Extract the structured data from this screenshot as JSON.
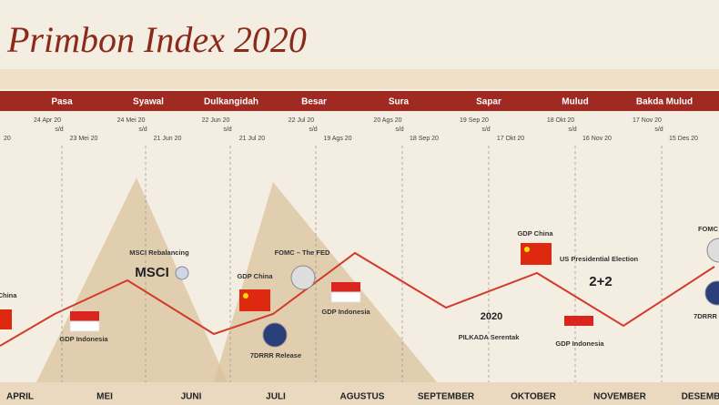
{
  "title": "Primbon Index 2020",
  "left_edge_date": "20",
  "javanese_months": [
    "Pasa",
    "Syawal",
    "Dulkangidah",
    "Besar",
    "Sura",
    "Sapar",
    "Mulud",
    "Bakda Mulud"
  ],
  "date_ranges": [
    {
      "start": "24 Apr 20",
      "sep": "s/d",
      "end": "23 Mei 20"
    },
    {
      "start": "24 Mei 20",
      "sep": "s/d",
      "end": "21 Jun 20"
    },
    {
      "start": "22 Jun 20",
      "sep": "s/d",
      "end": "21 Jul 20"
    },
    {
      "start": "22 Jul 20",
      "sep": "s/d",
      "end": "19 Ags 20"
    },
    {
      "start": "20 Ags 20",
      "sep": "s/d",
      "end": "18 Sep 20"
    },
    {
      "start": "19 Sep 20",
      "sep": "s/d",
      "end": "17 Okt 20"
    },
    {
      "start": "18 Okt 20",
      "sep": "s/d",
      "end": "16 Nov 20"
    },
    {
      "start": "17 Nov 20",
      "sep": "s/d",
      "end": "15 Des 20"
    }
  ],
  "months": [
    "APRIL",
    "MEI",
    "JUNI",
    "JULI",
    "AGUSTUS",
    "SEPTEMBER",
    "OKTOBER",
    "NOVEMBER",
    "DESEMB"
  ],
  "events": [
    {
      "label": "China"
    },
    {
      "label": "GDP Indonesia"
    },
    {
      "label": "MSCI Rebalancing"
    },
    {
      "label": "MSCI"
    },
    {
      "label": "GDP China"
    },
    {
      "label": "FOMC – The FED"
    },
    {
      "label": "7DRRR Release"
    },
    {
      "label": "GDP Indonesia"
    },
    {
      "label": "2020"
    },
    {
      "label": "PILKADA Serentak"
    },
    {
      "label": "GDP China"
    },
    {
      "label": "US Presidential Election"
    },
    {
      "label": "2+2"
    },
    {
      "label": "GDP Indonesia"
    },
    {
      "label": "FOMC"
    },
    {
      "label": "7DRRR"
    }
  ]
}
